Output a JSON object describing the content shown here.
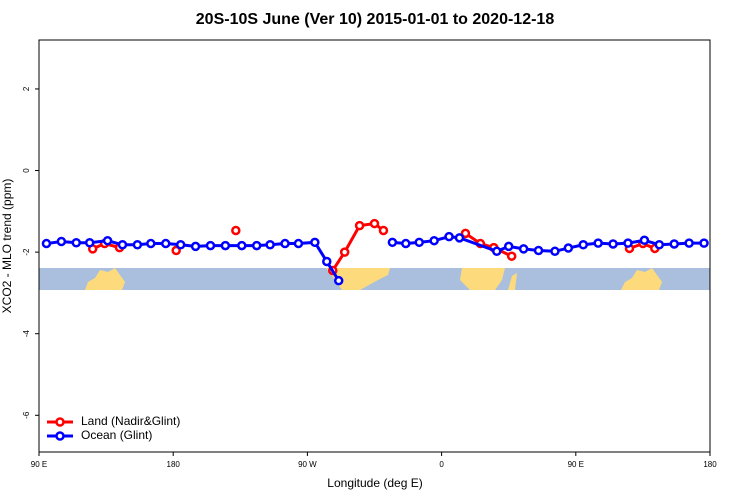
{
  "chart_data": {
    "type": "line",
    "title": "20S-10S June (Ver 10)   2015-01-01 to 2020-12-18",
    "x_label": "Longitude (deg E)",
    "y_label": "XCO2 - MLO trend (ppm)",
    "xlim": [
      90,
      540
    ],
    "ylim": [
      -6.9,
      3.2
    ],
    "xticks": [
      {
        "value": 90,
        "label": "90 E"
      },
      180,
      {
        "value": 270,
        "label": "90 W"
      },
      {
        "value": 360,
        "label": "0"
      },
      {
        "value": 450,
        "label": "90 E"
      },
      {
        "value": 540,
        "label": "180"
      }
    ],
    "yticks": [
      2,
      0,
      -2,
      -4,
      -6
    ],
    "legend": "bottom-left",
    "series": [
      {
        "name": "Land (Nadir&Glint)",
        "color": "#ff0000",
        "x": [
          126,
          134,
          144,
          null,
          182,
          null,
          222,
          null,
          287,
          295,
          305,
          315,
          321,
          null,
          376,
          386,
          395,
          407,
          null,
          486,
          495,
          503
        ],
        "values": [
          -1.92,
          -1.79,
          -1.89,
          null,
          -1.96,
          null,
          -1.47,
          null,
          -2.45,
          -2.0,
          -1.35,
          -1.3,
          -1.47,
          null,
          -1.54,
          -1.79,
          -1.89,
          -2.1,
          null,
          -1.91,
          -1.79,
          -1.91
        ]
      },
      {
        "name": "Ocean (Glint)",
        "color": "#0000ff",
        "x": [
          95,
          105,
          115,
          124,
          136,
          146,
          156,
          165,
          175,
          185,
          195,
          205,
          215,
          226,
          236,
          245,
          255,
          264,
          275,
          283,
          291,
          null,
          327,
          336,
          345,
          355,
          365,
          372,
          397,
          405,
          415,
          425,
          436,
          445,
          455,
          465,
          475,
          485,
          496,
          506,
          516,
          526,
          536
        ],
        "values": [
          -1.79,
          -1.74,
          -1.77,
          -1.77,
          -1.72,
          -1.82,
          -1.82,
          -1.79,
          -1.79,
          -1.82,
          -1.86,
          -1.84,
          -1.84,
          -1.84,
          -1.84,
          -1.82,
          -1.79,
          -1.79,
          -1.76,
          -2.23,
          -2.7,
          null,
          -1.76,
          -1.79,
          -1.76,
          -1.72,
          -1.62,
          -1.65,
          -1.98,
          -1.86,
          -1.92,
          -1.96,
          -1.98,
          -1.9,
          -1.82,
          -1.78,
          -1.8,
          -1.78,
          -1.71,
          -1.82,
          -1.8,
          -1.78,
          -1.78
        ]
      }
    ]
  }
}
